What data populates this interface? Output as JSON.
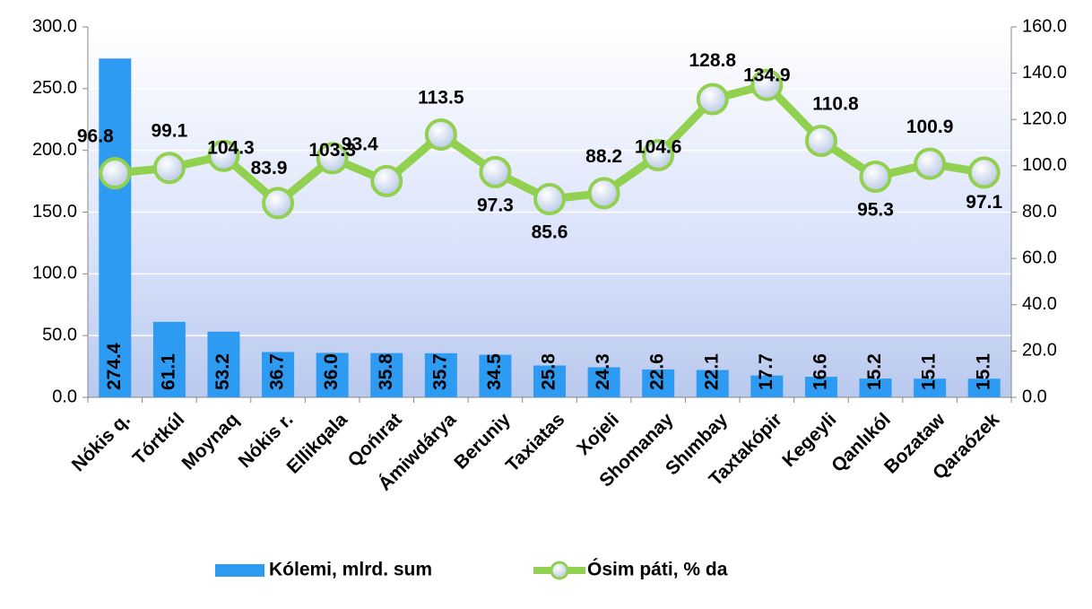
{
  "chart_data": {
    "type": "bar-line",
    "categories": [
      "Nókis q.",
      "Tórtkúl",
      "Moynaq",
      "Nókis r.",
      "Ellikqala",
      "Qońırat",
      "Ámiwdárya",
      "Beruniy",
      "Taxiatas",
      "Xojeli",
      "Shomanay",
      "Shımbay",
      "Taxtakópir",
      "Kegeyli",
      "Qanlıkól",
      "Bozataw",
      "Qaraózek"
    ],
    "series": [
      {
        "name": "Kólemi, mlrd. sum",
        "type": "bar",
        "color": "#2e9bf2",
        "values": [
          274.4,
          61.1,
          53.2,
          36.7,
          36.0,
          35.8,
          35.7,
          34.5,
          25.8,
          24.3,
          22.6,
          22.1,
          17.7,
          16.6,
          15.2,
          15.1,
          15.1
        ],
        "value_labels": [
          "274.4",
          "61.1",
          "53.2",
          "36.7",
          "36.0",
          "35.8",
          "35.7",
          "34.5",
          "25.8",
          "24.3",
          "22.6",
          "22.1",
          "17.7",
          "16.6",
          "15.2",
          "15.1",
          "15.1"
        ]
      },
      {
        "name": "Ósim páti, % da",
        "type": "line",
        "axis": "y2",
        "color": "#92d050",
        "values": [
          96.8,
          99.1,
          104.3,
          83.9,
          103.3,
          93.4,
          113.5,
          97.3,
          85.6,
          88.2,
          104.6,
          128.8,
          134.9,
          110.8,
          95.3,
          100.9,
          97.1
        ],
        "value_labels": [
          "96.8",
          "99.1",
          "104.3",
          "83.9",
          "103.3",
          "93.4",
          "113.5",
          "97.3",
          "85.6",
          "88.2",
          "104.6",
          "128.8",
          "134.9",
          "110.8",
          "95.3",
          "100.9",
          "97.1"
        ]
      }
    ],
    "ylim": [
      0,
      300
    ],
    "yticks": [
      {
        "value": 0,
        "label": "0.0"
      },
      {
        "value": 50,
        "label": "50.0"
      },
      {
        "value": 100,
        "label": "100.0"
      },
      {
        "value": 150,
        "label": "150.0"
      },
      {
        "value": 200,
        "label": "200.0"
      },
      {
        "value": 250,
        "label": "250.0"
      },
      {
        "value": 300,
        "label": "300.0"
      }
    ],
    "y2lim": [
      0,
      160
    ],
    "y2ticks": [
      {
        "value": 0,
        "label": "0.0"
      },
      {
        "value": 20,
        "label": "20.0"
      },
      {
        "value": 40,
        "label": "40.0"
      },
      {
        "value": 60,
        "label": "60.0"
      },
      {
        "value": 80,
        "label": "80.0"
      },
      {
        "value": 100,
        "label": "100.0"
      },
      {
        "value": 120,
        "label": "120.0"
      },
      {
        "value": 140,
        "label": "140.0"
      },
      {
        "value": 160,
        "label": "160.0"
      }
    ],
    "grid": true,
    "legend": "bottom"
  }
}
